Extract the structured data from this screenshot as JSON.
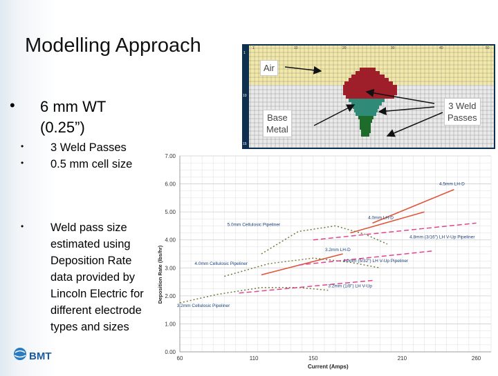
{
  "slide": {
    "title": "Modelling Approach",
    "main_bullet_symbol": "•",
    "main_bullet": [
      "6 mm WT",
      "(0.25”)"
    ],
    "sub_bullet_symbol": "•",
    "sub_bullets": [
      "3 Weld Passes",
      "0.5 mm cell size"
    ],
    "note_lines": [
      "Weld pass size",
      "estimated using",
      "Deposition Rate",
      "data provided by",
      "Lincoln Electric for",
      "different electrode",
      "types and sizes"
    ],
    "logo_text": "BMT"
  },
  "callouts": {
    "air": "Air",
    "base_metal": [
      "Base",
      "Metal"
    ],
    "weld_passes": [
      "3 Weld",
      "Passes"
    ]
  },
  "weld_grid": {
    "column_markers": [
      "1",
      "10",
      "20",
      "30",
      "40",
      "50"
    ],
    "row_markers": [
      "1",
      "10",
      "15"
    ]
  },
  "colors": {
    "weld_red": "#9e1e2a",
    "weld_green": "#2f8a78",
    "weld_dark_green": "#1e6b2c",
    "grid_yellow": "#f3e9a5",
    "base_metal": "#eaeaea",
    "series_orange": "#e0543a",
    "series_pink": "#e0448f",
    "series_olive": "#6f7a36"
  },
  "chart_data": {
    "type": "line",
    "xlabel": "Current (Amps)",
    "ylabel": "Deposition Rate (lbs/hr)",
    "x_ticks": [
      "60",
      "110",
      "150",
      "210",
      "260"
    ],
    "y_ticks": [
      "0.00",
      "1.00",
      "2.00",
      "3.00",
      "4.00",
      "5.00",
      "6.00",
      "7.00"
    ],
    "xlim": [
      60,
      270
    ],
    "ylim": [
      0,
      7
    ],
    "grid": true,
    "series": [
      {
        "name": "4.5mm LH-D",
        "style": "solid",
        "color": "#e0543a",
        "x": [
          190,
          245
        ],
        "y": [
          4.6,
          5.8
        ]
      },
      {
        "name": "4.0mm LH-D",
        "style": "solid",
        "color": "#e0543a",
        "x": [
          175,
          225
        ],
        "y": [
          4.25,
          5.0
        ]
      },
      {
        "name": "3.2mm LH-D",
        "style": "solid",
        "color": "#e0543a",
        "x": [
          115,
          170
        ],
        "y": [
          2.75,
          3.5
        ]
      },
      {
        "name": "5.0mm Cellulosic Pipeliner",
        "style": "dotted",
        "color": "#6f7a36",
        "x": [
          115,
          140,
          165,
          185,
          200
        ],
        "y": [
          3.5,
          4.3,
          4.5,
          4.2,
          3.85
        ]
      },
      {
        "name": "4.0mm Cellulosic Pipeliner",
        "style": "dotted",
        "color": "#6f7a36",
        "x": [
          90,
          120,
          150,
          175,
          195
        ],
        "y": [
          2.7,
          3.15,
          3.35,
          3.2,
          3.0
        ]
      },
      {
        "name": "3.2mm Cellulosic Pipeliner",
        "style": "dotted",
        "color": "#6f7a36",
        "x": [
          60,
          85,
          115,
          140,
          160
        ],
        "y": [
          1.75,
          2.05,
          2.3,
          2.3,
          2.2
        ]
      },
      {
        "name": "4.8mm (3/16\") LH V-Up Pipeliner",
        "style": "dashed",
        "color": "#e0448f",
        "x": [
          150,
          260
        ],
        "y": [
          4.0,
          4.6
        ]
      },
      {
        "name": "4.0mm (5/32\") LH V-Up Pipeliner",
        "style": "dashed",
        "color": "#e0448f",
        "x": [
          140,
          230
        ],
        "y": [
          3.1,
          3.6
        ]
      },
      {
        "name": "3.2mm (1/8\") LH V-Up",
        "style": "dashed",
        "color": "#e0448f",
        "x": [
          100,
          190
        ],
        "y": [
          2.1,
          2.55
        ]
      }
    ]
  }
}
